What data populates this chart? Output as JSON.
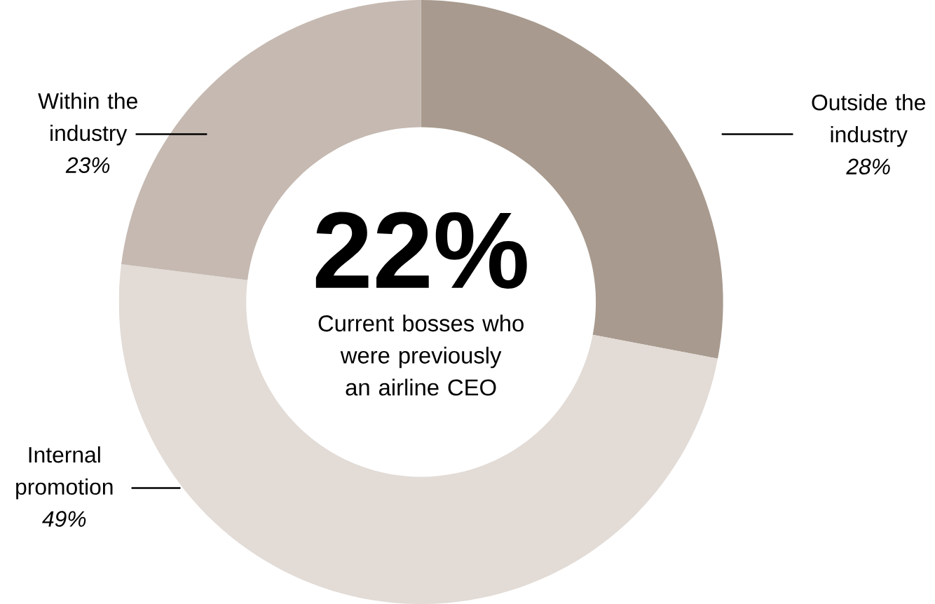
{
  "chart_data": {
    "type": "donut",
    "categories": [
      "Outside the industry",
      "Internal promotion",
      "Within the industry"
    ],
    "values": [
      28,
      49,
      23
    ],
    "colors": [
      "#a89a8e",
      "#e2dbd6",
      "#c5b9b1"
    ],
    "value_labels": [
      "28%",
      "49%",
      "23%"
    ],
    "annotations": [
      "22%",
      "Current bosses who were previously an airline CEO"
    ]
  }
}
